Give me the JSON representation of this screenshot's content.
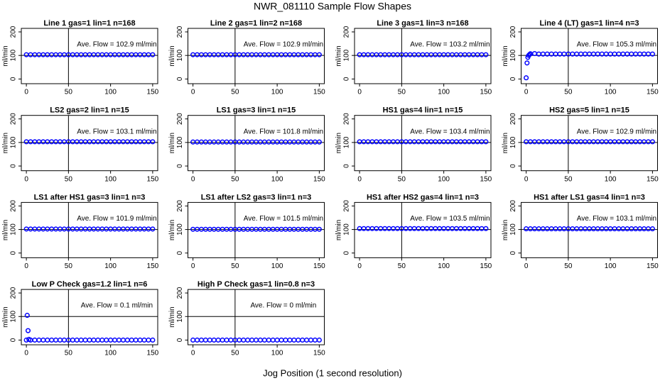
{
  "title": "NWR_081110  Sample Flow Shapes",
  "xlabel": "Jog Position (1 second resolution)",
  "chart_data": [
    {
      "type": "scatter",
      "title": "Line 1 gas=1 lin=1 n=168",
      "annotation": "Ave. Flow =  102.9  ml/min",
      "ylabel": "ml/min",
      "color": "#0000ff",
      "xlim": [
        -6,
        156
      ],
      "ylim": [
        -20,
        215
      ],
      "xticks": [
        0,
        50,
        100,
        150
      ],
      "yticks": [
        0,
        100,
        200
      ],
      "vline": 50,
      "hline": 100,
      "x": [
        0,
        5,
        10,
        15,
        20,
        25,
        30,
        35,
        40,
        45,
        50,
        55,
        60,
        65,
        70,
        75,
        80,
        85,
        90,
        95,
        100,
        105,
        110,
        115,
        120,
        125,
        130,
        135,
        140,
        145,
        150
      ],
      "values": [
        103,
        103,
        103,
        103,
        103,
        103,
        103,
        103,
        103,
        103,
        103,
        103,
        103,
        103,
        103,
        103,
        103,
        103,
        103,
        103,
        103,
        103,
        103,
        103,
        103,
        103,
        103,
        103,
        103,
        103,
        103
      ]
    },
    {
      "type": "scatter",
      "title": "Line 2 gas=1 lin=2 n=168",
      "annotation": "Ave. Flow =  102.9  ml/min",
      "ylabel": "ml/min",
      "color": "#0000ff",
      "xlim": [
        -6,
        156
      ],
      "ylim": [
        -20,
        215
      ],
      "xticks": [
        0,
        50,
        100,
        150
      ],
      "yticks": [
        0,
        100,
        200
      ],
      "vline": 50,
      "hline": 100,
      "x": [
        0,
        5,
        10,
        15,
        20,
        25,
        30,
        35,
        40,
        45,
        50,
        55,
        60,
        65,
        70,
        75,
        80,
        85,
        90,
        95,
        100,
        105,
        110,
        115,
        120,
        125,
        130,
        135,
        140,
        145,
        150
      ],
      "values": [
        103,
        103,
        103,
        103,
        103,
        103,
        103,
        103,
        103,
        103,
        103,
        103,
        103,
        103,
        103,
        103,
        103,
        103,
        103,
        103,
        103,
        103,
        103,
        103,
        103,
        103,
        103,
        103,
        103,
        103,
        103
      ]
    },
    {
      "type": "scatter",
      "title": "Line 3 gas=1 lin=3 n=168",
      "annotation": "Ave. Flow =  103.2  ml/min",
      "ylabel": "ml/min",
      "color": "#0000ff",
      "xlim": [
        -6,
        156
      ],
      "ylim": [
        -20,
        215
      ],
      "xticks": [
        0,
        50,
        100,
        150
      ],
      "yticks": [
        0,
        100,
        200
      ],
      "vline": 50,
      "hline": 100,
      "x": [
        0,
        5,
        10,
        15,
        20,
        25,
        30,
        35,
        40,
        45,
        50,
        55,
        60,
        65,
        70,
        75,
        80,
        85,
        90,
        95,
        100,
        105,
        110,
        115,
        120,
        125,
        130,
        135,
        140,
        145,
        150
      ],
      "values": [
        103,
        103,
        103,
        103,
        103,
        103,
        103,
        103,
        103,
        103,
        103,
        103,
        103,
        103,
        103,
        103,
        103,
        103,
        103,
        103,
        103,
        103,
        103,
        103,
        103,
        103,
        103,
        103,
        103,
        103,
        103
      ]
    },
    {
      "type": "scatter",
      "title": "Line 4 (LT) gas=1 lin=4 n=3",
      "annotation": "Ave. Flow =  105.3  ml/min",
      "ylabel": "ml/min",
      "color": "#0000ff",
      "xlim": [
        -6,
        156
      ],
      "ylim": [
        -20,
        215
      ],
      "xticks": [
        0,
        50,
        100,
        150
      ],
      "yticks": [
        0,
        100,
        200
      ],
      "vline": 50,
      "hline": 100,
      "x": [
        0,
        1,
        2,
        3,
        4,
        5,
        10,
        15,
        20,
        25,
        30,
        35,
        40,
        45,
        50,
        55,
        60,
        65,
        70,
        75,
        80,
        85,
        90,
        95,
        100,
        105,
        110,
        115,
        120,
        125,
        130,
        135,
        140,
        145,
        150
      ],
      "values": [
        5,
        68,
        92,
        100,
        104,
        107,
        108,
        106,
        106,
        106,
        106,
        106,
        106,
        106,
        106,
        106,
        106,
        106,
        106,
        106,
        106,
        106,
        106,
        106,
        106,
        106,
        106,
        106,
        106,
        106,
        106,
        106,
        106,
        106,
        106
      ]
    },
    {
      "type": "scatter",
      "title": "LS2 gas=2 lin=1 n=15",
      "annotation": "Ave. Flow =  103.1  ml/min",
      "ylabel": "ml/min",
      "color": "#0000ff",
      "xlim": [
        -6,
        156
      ],
      "ylim": [
        -20,
        215
      ],
      "xticks": [
        0,
        50,
        100,
        150
      ],
      "yticks": [
        0,
        100,
        200
      ],
      "vline": 50,
      "hline": 100,
      "x": [
        0,
        5,
        10,
        15,
        20,
        25,
        30,
        35,
        40,
        45,
        50,
        55,
        60,
        65,
        70,
        75,
        80,
        85,
        90,
        95,
        100,
        105,
        110,
        115,
        120,
        125,
        130,
        135,
        140,
        145,
        150
      ],
      "values": [
        103,
        103,
        103,
        103,
        103,
        103,
        103,
        103,
        103,
        103,
        103,
        103,
        103,
        103,
        103,
        103,
        103,
        103,
        103,
        103,
        103,
        103,
        103,
        103,
        103,
        103,
        103,
        103,
        103,
        103,
        103
      ]
    },
    {
      "type": "scatter",
      "title": "LS1 gas=3 lin=1 n=15",
      "annotation": "Ave. Flow =  101.8  ml/min",
      "ylabel": "ml/min",
      "color": "#0000ff",
      "xlim": [
        -6,
        156
      ],
      "ylim": [
        -20,
        215
      ],
      "xticks": [
        0,
        50,
        100,
        150
      ],
      "yticks": [
        0,
        100,
        200
      ],
      "vline": 50,
      "hline": 100,
      "x": [
        0,
        5,
        10,
        15,
        20,
        25,
        30,
        35,
        40,
        45,
        50,
        55,
        60,
        65,
        70,
        75,
        80,
        85,
        90,
        95,
        100,
        105,
        110,
        115,
        120,
        125,
        130,
        135,
        140,
        145,
        150
      ],
      "values": [
        102,
        102,
        102,
        102,
        102,
        102,
        102,
        102,
        102,
        102,
        102,
        102,
        102,
        102,
        102,
        102,
        102,
        102,
        102,
        102,
        102,
        102,
        102,
        102,
        102,
        102,
        102,
        102,
        102,
        102,
        102
      ]
    },
    {
      "type": "scatter",
      "title": "HS1 gas=4 lin=1 n=15",
      "annotation": "Ave. Flow =  103.4  ml/min",
      "ylabel": "ml/min",
      "color": "#0000ff",
      "xlim": [
        -6,
        156
      ],
      "ylim": [
        -20,
        215
      ],
      "xticks": [
        0,
        50,
        100,
        150
      ],
      "yticks": [
        0,
        100,
        200
      ],
      "vline": 50,
      "hline": 100,
      "x": [
        0,
        5,
        10,
        15,
        20,
        25,
        30,
        35,
        40,
        45,
        50,
        55,
        60,
        65,
        70,
        75,
        80,
        85,
        90,
        95,
        100,
        105,
        110,
        115,
        120,
        125,
        130,
        135,
        140,
        145,
        150
      ],
      "values": [
        103,
        103,
        103,
        103,
        103,
        103,
        103,
        103,
        103,
        103,
        103,
        103,
        103,
        103,
        103,
        103,
        103,
        103,
        103,
        103,
        103,
        103,
        103,
        103,
        103,
        103,
        103,
        103,
        103,
        103,
        103
      ]
    },
    {
      "type": "scatter",
      "title": "HS2 gas=5 lin=1 n=15",
      "annotation": "Ave. Flow =  102.9  ml/min",
      "ylabel": "ml/min",
      "color": "#0000ff",
      "xlim": [
        -6,
        156
      ],
      "ylim": [
        -20,
        215
      ],
      "xticks": [
        0,
        50,
        100,
        150
      ],
      "yticks": [
        0,
        100,
        200
      ],
      "vline": 50,
      "hline": 100,
      "x": [
        0,
        5,
        10,
        15,
        20,
        25,
        30,
        35,
        40,
        45,
        50,
        55,
        60,
        65,
        70,
        75,
        80,
        85,
        90,
        95,
        100,
        105,
        110,
        115,
        120,
        125,
        130,
        135,
        140,
        145,
        150
      ],
      "values": [
        103,
        103,
        103,
        103,
        103,
        103,
        103,
        103,
        103,
        103,
        103,
        103,
        103,
        103,
        103,
        103,
        103,
        103,
        103,
        103,
        103,
        103,
        103,
        103,
        103,
        103,
        103,
        103,
        103,
        103,
        103
      ]
    },
    {
      "type": "scatter",
      "title": "LS1 after HS1 gas=3 lin=1 n=3",
      "annotation": "Ave. Flow =  101.9  ml/min",
      "ylabel": "ml/min",
      "color": "#0000ff",
      "xlim": [
        -6,
        156
      ],
      "ylim": [
        -20,
        215
      ],
      "xticks": [
        0,
        50,
        100,
        150
      ],
      "yticks": [
        0,
        100,
        200
      ],
      "vline": 50,
      "hline": 100,
      "x": [
        0,
        5,
        10,
        15,
        20,
        25,
        30,
        35,
        40,
        45,
        50,
        55,
        60,
        65,
        70,
        75,
        80,
        85,
        90,
        95,
        100,
        105,
        110,
        115,
        120,
        125,
        130,
        135,
        140,
        145,
        150
      ],
      "values": [
        102,
        102,
        102,
        102,
        102,
        102,
        102,
        102,
        102,
        102,
        102,
        102,
        102,
        102,
        102,
        102,
        102,
        102,
        102,
        102,
        102,
        102,
        102,
        102,
        102,
        102,
        102,
        102,
        102,
        102,
        102
      ]
    },
    {
      "type": "scatter",
      "title": "LS1 after LS2 gas=3 lin=1 n=3",
      "annotation": "Ave. Flow =  101.5  ml/min",
      "ylabel": "ml/min",
      "color": "#0000ff",
      "xlim": [
        -6,
        156
      ],
      "ylim": [
        -20,
        215
      ],
      "xticks": [
        0,
        50,
        100,
        150
      ],
      "yticks": [
        0,
        100,
        200
      ],
      "vline": 50,
      "hline": 100,
      "x": [
        0,
        5,
        10,
        15,
        20,
        25,
        30,
        35,
        40,
        45,
        50,
        55,
        60,
        65,
        70,
        75,
        80,
        85,
        90,
        95,
        100,
        105,
        110,
        115,
        120,
        125,
        130,
        135,
        140,
        145,
        150
      ],
      "values": [
        101,
        101,
        101,
        101,
        101,
        101,
        101,
        101,
        101,
        101,
        101,
        101,
        101,
        101,
        101,
        101,
        101,
        101,
        101,
        101,
        101,
        101,
        101,
        101,
        101,
        101,
        101,
        101,
        101,
        101,
        101
      ]
    },
    {
      "type": "scatter",
      "title": "HS1 after HS2 gas=4 lin=1 n=3",
      "annotation": "Ave. Flow =  103.5  ml/min",
      "ylabel": "ml/min",
      "color": "#0000ff",
      "xlim": [
        -6,
        156
      ],
      "ylim": [
        -20,
        215
      ],
      "xticks": [
        0,
        50,
        100,
        150
      ],
      "yticks": [
        0,
        100,
        200
      ],
      "vline": 50,
      "hline": 100,
      "x": [
        0,
        5,
        10,
        15,
        20,
        25,
        30,
        35,
        40,
        45,
        50,
        55,
        60,
        65,
        70,
        75,
        80,
        85,
        90,
        95,
        100,
        105,
        110,
        115,
        120,
        125,
        130,
        135,
        140,
        145,
        150
      ],
      "values": [
        104,
        104,
        104,
        104,
        104,
        104,
        104,
        104,
        104,
        104,
        104,
        104,
        104,
        104,
        104,
        104,
        104,
        104,
        104,
        104,
        104,
        104,
        104,
        104,
        104,
        104,
        104,
        104,
        104,
        104,
        104
      ]
    },
    {
      "type": "scatter",
      "title": "HS1 after LS1 gas=4 lin=1 n=3",
      "annotation": "Ave. Flow =  103.1  ml/min",
      "ylabel": "ml/min",
      "color": "#0000ff",
      "xlim": [
        -6,
        156
      ],
      "ylim": [
        -20,
        215
      ],
      "xticks": [
        0,
        50,
        100,
        150
      ],
      "yticks": [
        0,
        100,
        200
      ],
      "vline": 50,
      "hline": 100,
      "x": [
        0,
        5,
        10,
        15,
        20,
        25,
        30,
        35,
        40,
        45,
        50,
        55,
        60,
        65,
        70,
        75,
        80,
        85,
        90,
        95,
        100,
        105,
        110,
        115,
        120,
        125,
        130,
        135,
        140,
        145,
        150
      ],
      "values": [
        103,
        103,
        103,
        103,
        103,
        103,
        103,
        103,
        103,
        103,
        103,
        103,
        103,
        103,
        103,
        103,
        103,
        103,
        103,
        103,
        103,
        103,
        103,
        103,
        103,
        103,
        103,
        103,
        103,
        103,
        103
      ]
    },
    {
      "type": "scatter",
      "title": "Low P Check gas=1.2 lin=1 n=6",
      "annotation": "Ave. Flow =  0.1  ml/min",
      "ylabel": "ml/min",
      "color": "#0000ff",
      "xlim": [
        -6,
        156
      ],
      "ylim": [
        -20,
        215
      ],
      "xticks": [
        0,
        50,
        100,
        150
      ],
      "yticks": [
        0,
        100,
        200
      ],
      "vline": 50,
      "hline": 100,
      "x": [
        0,
        1,
        2,
        3,
        5,
        10,
        15,
        20,
        25,
        30,
        35,
        40,
        45,
        50,
        55,
        60,
        65,
        70,
        75,
        80,
        85,
        90,
        95,
        100,
        105,
        110,
        115,
        120,
        125,
        130,
        135,
        140,
        145,
        150
      ],
      "values": [
        0,
        105,
        40,
        3,
        0,
        0,
        0,
        0,
        0,
        0,
        0,
        0,
        0,
        0,
        0,
        0,
        0,
        0,
        0,
        0,
        0,
        0,
        0,
        0,
        0,
        0,
        0,
        0,
        0,
        0,
        0,
        0,
        0,
        0
      ]
    },
    {
      "type": "scatter",
      "title": "High P Check gas=1 lin=0.8 n=3",
      "annotation": "Ave. Flow =  0  ml/min",
      "ylabel": "ml/min",
      "color": "#0000ff",
      "xlim": [
        -6,
        156
      ],
      "ylim": [
        -20,
        215
      ],
      "xticks": [
        0,
        50,
        100,
        150
      ],
      "yticks": [
        0,
        100,
        200
      ],
      "vline": 50,
      "hline": 100,
      "x": [
        0,
        5,
        10,
        15,
        20,
        25,
        30,
        35,
        40,
        45,
        50,
        55,
        60,
        65,
        70,
        75,
        80,
        85,
        90,
        95,
        100,
        105,
        110,
        115,
        120,
        125,
        130,
        135,
        140,
        145,
        150
      ],
      "values": [
        0,
        0,
        0,
        0,
        0,
        0,
        0,
        0,
        0,
        0,
        0,
        0,
        0,
        0,
        0,
        0,
        0,
        0,
        0,
        0,
        0,
        0,
        0,
        0,
        0,
        0,
        0,
        0,
        0,
        0,
        0
      ]
    }
  ]
}
